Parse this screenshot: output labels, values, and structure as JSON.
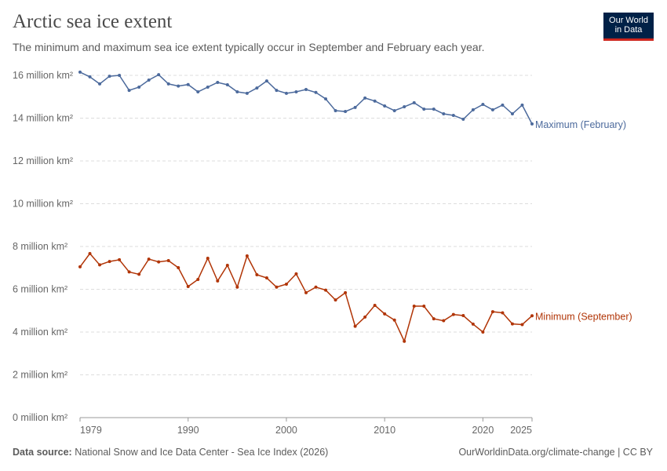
{
  "title": "Arctic sea ice extent",
  "subtitle": "The minimum and maximum sea ice extent typically occur in September and February each year.",
  "logo": {
    "line1": "Our World",
    "line2": "in Data"
  },
  "footer": {
    "source_label": "Data source:",
    "source": "National Snow and Ice Data Center - Sea Ice Index (2026)",
    "link": "OurWorldinData.org/climate-change | CC BY"
  },
  "chart_data": {
    "type": "line",
    "title": "Arctic sea ice extent",
    "xlim": [
      1979,
      2025
    ],
    "ylim": [
      0,
      16
    ],
    "x_ticks": [
      1979,
      1990,
      2000,
      2010,
      2020,
      2025
    ],
    "y_ticks": [
      {
        "v": 0,
        "label": "0 million km²"
      },
      {
        "v": 2,
        "label": "2 million km²"
      },
      {
        "v": 4,
        "label": "4 million km²"
      },
      {
        "v": 6,
        "label": "6 million km²"
      },
      {
        "v": 8,
        "label": "8 million km²"
      },
      {
        "v": 10,
        "label": "10 million km²"
      },
      {
        "v": 12,
        "label": "12 million km²"
      },
      {
        "v": 14,
        "label": "14 million km²"
      },
      {
        "v": 16,
        "label": "16 million km²"
      }
    ],
    "grid": true,
    "legend": "inline-right",
    "x": [
      1979,
      1980,
      1981,
      1982,
      1983,
      1984,
      1985,
      1986,
      1987,
      1988,
      1989,
      1990,
      1991,
      1992,
      1993,
      1994,
      1995,
      1996,
      1997,
      1998,
      1999,
      2000,
      2001,
      2002,
      2003,
      2004,
      2005,
      2006,
      2007,
      2008,
      2009,
      2010,
      2011,
      2012,
      2013,
      2014,
      2015,
      2016,
      2017,
      2018,
      2019,
      2020,
      2021,
      2022,
      2023,
      2024,
      2025
    ],
    "series": [
      {
        "name": "Maximum (February)",
        "color": "#4c6a9c",
        "values": [
          16.15,
          15.93,
          15.6,
          15.96,
          16.0,
          15.3,
          15.45,
          15.78,
          16.03,
          15.6,
          15.5,
          15.57,
          15.23,
          15.45,
          15.67,
          15.56,
          15.23,
          15.16,
          15.41,
          15.74,
          15.3,
          15.16,
          15.23,
          15.34,
          15.2,
          14.9,
          14.35,
          14.31,
          14.5,
          14.94,
          14.8,
          14.57,
          14.35,
          14.53,
          14.72,
          14.42,
          14.42,
          14.2,
          14.13,
          13.95,
          14.39,
          14.64,
          14.39,
          14.61,
          14.2,
          14.61,
          13.73
        ]
      },
      {
        "name": "Minimum (September)",
        "color": "#b13507",
        "values": [
          7.05,
          7.67,
          7.14,
          7.3,
          7.38,
          6.81,
          6.7,
          7.41,
          7.28,
          7.34,
          7.01,
          6.13,
          6.46,
          7.45,
          6.39,
          7.12,
          6.1,
          7.56,
          6.68,
          6.53,
          6.1,
          6.24,
          6.72,
          5.84,
          6.1,
          5.96,
          5.5,
          5.84,
          4.27,
          4.7,
          5.25,
          4.85,
          4.56,
          3.57,
          5.21,
          5.21,
          4.62,
          4.53,
          4.82,
          4.77,
          4.37,
          4.0,
          4.95,
          4.9,
          4.38,
          4.35,
          4.76
        ]
      }
    ]
  }
}
